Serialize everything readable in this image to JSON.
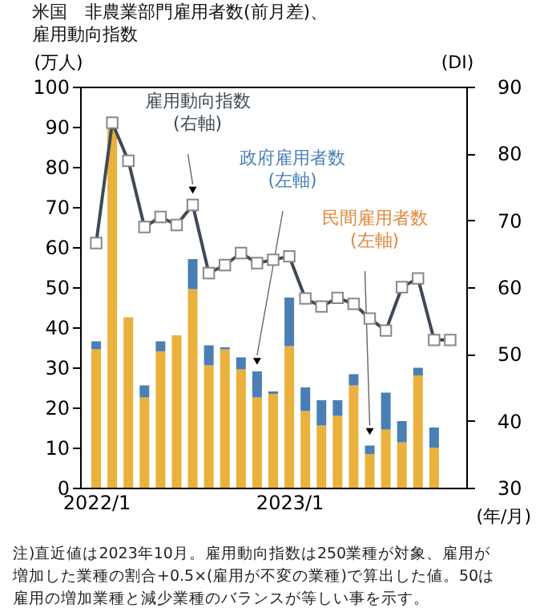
{
  "chart_data": {
    "type": "bar",
    "title": "米国　非農業部門雇用者数(前月差)、雇用動向指数",
    "ylabel": "(万人)",
    "y2label": "(DI)",
    "xlabel": "(年/月)",
    "categories": [
      "2022/1",
      null,
      null,
      null,
      null,
      null,
      null,
      null,
      null,
      null,
      null,
      null,
      "2023/1",
      null,
      null,
      null,
      null,
      null,
      null,
      null,
      null,
      null,
      null
    ],
    "stacked": true,
    "grid": false,
    "marker": "square",
    "line_style": "solid",
    "ylim": [
      0,
      100
    ],
    "yticks": [
      0,
      10,
      20,
      30,
      40,
      50,
      60,
      70,
      80,
      90,
      100
    ],
    "y2lim": [
      30,
      90
    ],
    "y2ticks": [
      30,
      40,
      50,
      60,
      70,
      80,
      90
    ],
    "series": [
      {
        "name": "民間雇用者数(左軸)",
        "color": "#eab13c",
        "values": [
          34.5,
          90,
          42.5,
          22.5,
          34,
          38,
          49.5,
          30.5,
          34.5,
          29.5,
          22.5,
          23.4,
          35.3,
          19.1,
          15.5,
          17.9,
          25.5,
          8.4,
          14.5,
          11.3,
          28,
          10,
          null
        ]
      },
      {
        "name": "政府雇用者数(左軸)",
        "color": "#4a7fb5",
        "values": [
          2,
          0,
          0,
          3,
          2.5,
          0,
          7.5,
          5,
          0.5,
          3,
          6.5,
          0.6,
          12.1,
          5.9,
          6.3,
          3.9,
          2.8,
          2.1,
          9.2,
          5.3,
          1.9,
          5,
          null
        ]
      },
      {
        "name": "雇用動向指数(右軸)",
        "type": "line",
        "axis": "y2",
        "color": "#3f4a56",
        "values": [
          66.6,
          84.6,
          78.9,
          69,
          70.5,
          69.3,
          72.3,
          62.1,
          63.3,
          65.1,
          63.6,
          64.1,
          64.6,
          58.3,
          57.1,
          58.4,
          57.5,
          55.3,
          53.5,
          60,
          61.3,
          52.1,
          52.1
        ]
      }
    ],
    "annotations": [
      "注)直近値は2023年10月。雇用動向指数は250業種が対象、雇用が",
      "増加した業種の割合+0.5×(雇用が不変の業種)で算出した値。50は",
      "雇用の増加業種と減少業種のバランスが等しい事を示す。"
    ]
  }
}
